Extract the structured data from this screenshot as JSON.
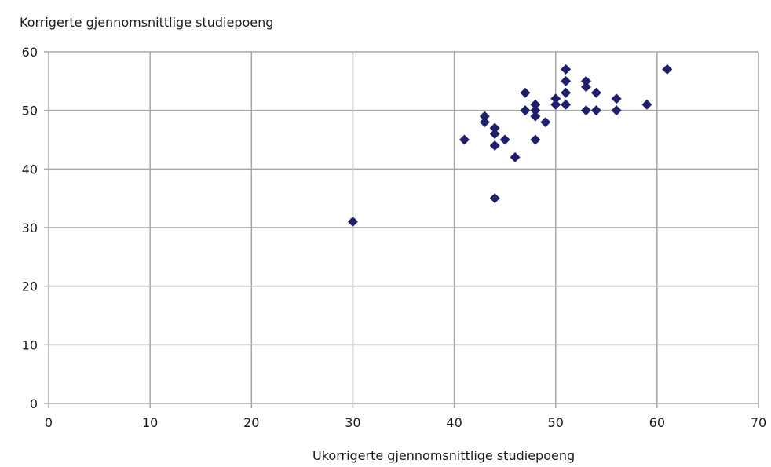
{
  "chart_data": {
    "type": "scatter",
    "title": "",
    "xlabel": "Ukorrigerte gjennomsnittlige studiepoeng",
    "ylabel": "Korrigerte gjennomsnittlige studiepoeng",
    "xlim": [
      0,
      70
    ],
    "ylim": [
      0,
      60
    ],
    "xticks": [
      0,
      10,
      20,
      30,
      40,
      50,
      60,
      70
    ],
    "yticks": [
      0,
      10,
      20,
      30,
      40,
      50,
      60
    ],
    "grid": true,
    "legend": "none",
    "marker": "diamond",
    "marker_color": "#1f1f6b",
    "gridline_color": "#a6a6a6",
    "points": [
      {
        "x": 30,
        "y": 31
      },
      {
        "x": 41,
        "y": 45
      },
      {
        "x": 43,
        "y": 49
      },
      {
        "x": 43,
        "y": 48
      },
      {
        "x": 44,
        "y": 47
      },
      {
        "x": 44,
        "y": 46
      },
      {
        "x": 44,
        "y": 44
      },
      {
        "x": 44,
        "y": 35
      },
      {
        "x": 45,
        "y": 45
      },
      {
        "x": 46,
        "y": 42
      },
      {
        "x": 47,
        "y": 53
      },
      {
        "x": 47,
        "y": 50
      },
      {
        "x": 48,
        "y": 51
      },
      {
        "x": 48,
        "y": 50
      },
      {
        "x": 48,
        "y": 49
      },
      {
        "x": 48,
        "y": 45
      },
      {
        "x": 49,
        "y": 48
      },
      {
        "x": 50,
        "y": 52
      },
      {
        "x": 50,
        "y": 51
      },
      {
        "x": 51,
        "y": 57
      },
      {
        "x": 51,
        "y": 55
      },
      {
        "x": 51,
        "y": 53
      },
      {
        "x": 51,
        "y": 51
      },
      {
        "x": 53,
        "y": 55
      },
      {
        "x": 53,
        "y": 54
      },
      {
        "x": 53,
        "y": 50
      },
      {
        "x": 54,
        "y": 53
      },
      {
        "x": 54,
        "y": 50
      },
      {
        "x": 56,
        "y": 52
      },
      {
        "x": 56,
        "y": 50
      },
      {
        "x": 59,
        "y": 51
      },
      {
        "x": 61,
        "y": 57
      }
    ]
  }
}
